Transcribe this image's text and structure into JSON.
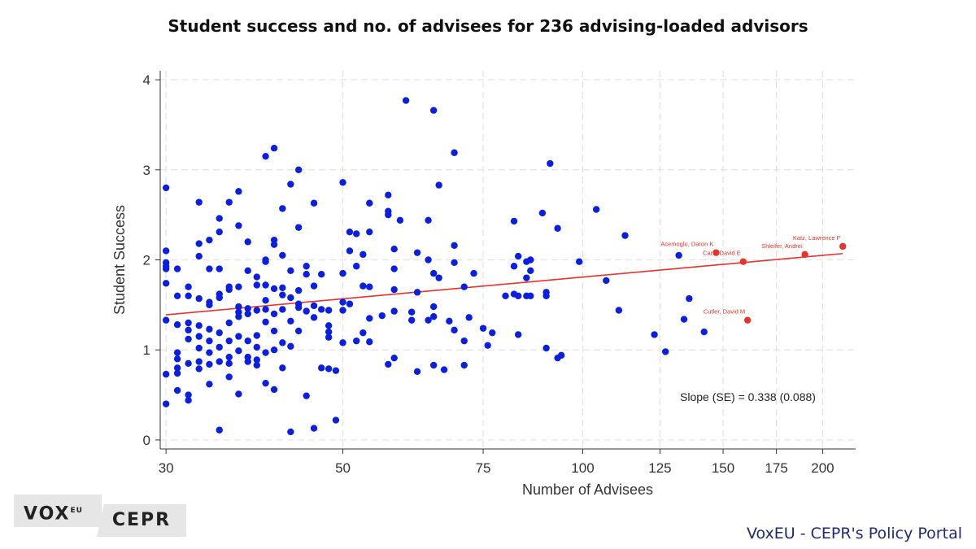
{
  "title": "Student success and no. of advisees for 236 advising-loaded advisors",
  "brand": {
    "vox": "VOX",
    "eu": "EU",
    "cepr": "CEPR"
  },
  "portal": "VoxEU - CEPR's Policy Portal",
  "colors": {
    "points": "#0a1fe0",
    "highlight": "#e8322b",
    "fit_line": "#e8322b",
    "grid": "#e2e2e2"
  },
  "chart_data": {
    "type": "scatter",
    "title": "Student success and no. of advisees for 236 advising-loaded advisors",
    "xlabel": "Number of Advisees",
    "ylabel": "Student Success",
    "x_scale": "log",
    "xlim": [
      29.5,
      220
    ],
    "ylim": [
      -0.1,
      4.1
    ],
    "x_ticks": [
      30,
      50,
      75,
      100,
      125,
      150,
      175,
      200
    ],
    "y_ticks": [
      0,
      1,
      2,
      3,
      4
    ],
    "grid": true,
    "annotation": "Slope (SE) = 0.338 (0.088)",
    "fit_line": {
      "x": [
        30,
        212
      ],
      "y": [
        1.39,
        2.07
      ]
    },
    "highlighted": [
      {
        "name": "Acemoglu, Daron K",
        "x": 147,
        "y": 2.08
      },
      {
        "name": "Card, David E",
        "x": 159,
        "y": 1.98
      },
      {
        "name": "Shleifer, Andrei",
        "x": 190,
        "y": 2.06
      },
      {
        "name": "Katz, Lawrence F",
        "x": 212,
        "y": 2.15
      },
      {
        "name": "Cutler, David M",
        "x": 161,
        "y": 1.33
      }
    ],
    "series": [
      {
        "points": [
          [
            30,
            2.8
          ],
          [
            30,
            2.1
          ],
          [
            30,
            1.97
          ],
          [
            30,
            1.93
          ],
          [
            30,
            1.9
          ],
          [
            30,
            1.74
          ],
          [
            30,
            1.33
          ],
          [
            30,
            0.73
          ],
          [
            30,
            0.4
          ],
          [
            31,
            1.9
          ],
          [
            31,
            1.6
          ],
          [
            31,
            1.28
          ],
          [
            31,
            0.97
          ],
          [
            31,
            0.9
          ],
          [
            31,
            0.8
          ],
          [
            31,
            0.74
          ],
          [
            31,
            0.55
          ],
          [
            32,
            1.7
          ],
          [
            32,
            1.6
          ],
          [
            32,
            1.3
          ],
          [
            32,
            1.22
          ],
          [
            32,
            1.12
          ],
          [
            32,
            0.85
          ],
          [
            32,
            0.5
          ],
          [
            32,
            0.44
          ],
          [
            33,
            2.64
          ],
          [
            33,
            2.18
          ],
          [
            33,
            2.04
          ],
          [
            33,
            1.57
          ],
          [
            33,
            1.27
          ],
          [
            33,
            1.15
          ],
          [
            33,
            1.02
          ],
          [
            33,
            0.87
          ],
          [
            33,
            0.79
          ],
          [
            34,
            2.22
          ],
          [
            34,
            1.9
          ],
          [
            34,
            1.53
          ],
          [
            34,
            1.5
          ],
          [
            34,
            1.23
          ],
          [
            34,
            1.1
          ],
          [
            34,
            0.97
          ],
          [
            34,
            0.84
          ],
          [
            34,
            0.62
          ],
          [
            35,
            2.46
          ],
          [
            35,
            2.31
          ],
          [
            35,
            1.9
          ],
          [
            35,
            1.62
          ],
          [
            35,
            1.58
          ],
          [
            35,
            1.19
          ],
          [
            35,
            1.03
          ],
          [
            35,
            0.87
          ],
          [
            35,
            0.11
          ],
          [
            36,
            2.64
          ],
          [
            36,
            1.7
          ],
          [
            36,
            1.67
          ],
          [
            36,
            1.3
          ],
          [
            36,
            1.1
          ],
          [
            36,
            0.92
          ],
          [
            36,
            0.85
          ],
          [
            36,
            0.7
          ],
          [
            37,
            2.76
          ],
          [
            37,
            2.38
          ],
          [
            37,
            1.7
          ],
          [
            37,
            1.48
          ],
          [
            37,
            1.42
          ],
          [
            37,
            1.37
          ],
          [
            37,
            1.15
          ],
          [
            37,
            0.99
          ],
          [
            37,
            0.51
          ],
          [
            38,
            2.2
          ],
          [
            38,
            1.88
          ],
          [
            38,
            1.46
          ],
          [
            38,
            1.4
          ],
          [
            38,
            1.1
          ],
          [
            38,
            0.92
          ],
          [
            38,
            0.87
          ],
          [
            39,
            1.81
          ],
          [
            39,
            1.72
          ],
          [
            39,
            1.44
          ],
          [
            39,
            1.16
          ],
          [
            39,
            1.03
          ],
          [
            39,
            0.89
          ],
          [
            39,
            0.83
          ],
          [
            40,
            3.15
          ],
          [
            40,
            2.0
          ],
          [
            40,
            1.98
          ],
          [
            40,
            1.72
          ],
          [
            40,
            1.55
          ],
          [
            40,
            1.45
          ],
          [
            40,
            1.31
          ],
          [
            40,
            0.97
          ],
          [
            40,
            0.63
          ],
          [
            41,
            3.24
          ],
          [
            41,
            2.22
          ],
          [
            41,
            2.17
          ],
          [
            41,
            1.68
          ],
          [
            41,
            1.4
          ],
          [
            41,
            1.21
          ],
          [
            41,
            1.0
          ],
          [
            41,
            0.56
          ],
          [
            42,
            2.57
          ],
          [
            42,
            2.05
          ],
          [
            42,
            1.69
          ],
          [
            42,
            1.61
          ],
          [
            42,
            1.45
          ],
          [
            42,
            1.08
          ],
          [
            42,
            0.8
          ],
          [
            43,
            2.84
          ],
          [
            43,
            1.88
          ],
          [
            43,
            1.58
          ],
          [
            43,
            1.32
          ],
          [
            43,
            1.04
          ],
          [
            43,
            0.09
          ],
          [
            44,
            3.0
          ],
          [
            44,
            2.36
          ],
          [
            44,
            1.66
          ],
          [
            44,
            1.51
          ],
          [
            44,
            1.47
          ],
          [
            44,
            1.21
          ],
          [
            45,
            1.93
          ],
          [
            45,
            1.84
          ],
          [
            45,
            1.43
          ],
          [
            45,
            0.49
          ],
          [
            46,
            2.63
          ],
          [
            46,
            1.71
          ],
          [
            46,
            1.49
          ],
          [
            46,
            1.36
          ],
          [
            46,
            0.13
          ],
          [
            47,
            1.84
          ],
          [
            47,
            1.45
          ],
          [
            47,
            0.8
          ],
          [
            48,
            1.44
          ],
          [
            48,
            1.27
          ],
          [
            48,
            1.2
          ],
          [
            48,
            1.14
          ],
          [
            48,
            0.79
          ],
          [
            49,
            0.77
          ],
          [
            49,
            0.22
          ],
          [
            50,
            2.86
          ],
          [
            50,
            1.85
          ],
          [
            50,
            1.53
          ],
          [
            50,
            1.44
          ],
          [
            50,
            1.08
          ],
          [
            51,
            2.31
          ],
          [
            51,
            2.1
          ],
          [
            51,
            1.51
          ],
          [
            52,
            2.29
          ],
          [
            52,
            1.93
          ],
          [
            52,
            1.1
          ],
          [
            53,
            2.06
          ],
          [
            53,
            1.71
          ],
          [
            53,
            1.19
          ],
          [
            54,
            2.63
          ],
          [
            54,
            2.31
          ],
          [
            54,
            1.7
          ],
          [
            54,
            1.35
          ],
          [
            54,
            1.09
          ],
          [
            56,
            1.38
          ],
          [
            57,
            2.72
          ],
          [
            57,
            2.54
          ],
          [
            57,
            2.5
          ],
          [
            57,
            0.84
          ],
          [
            58,
            2.12
          ],
          [
            58,
            1.9
          ],
          [
            58,
            1.67
          ],
          [
            58,
            1.43
          ],
          [
            58,
            0.91
          ],
          [
            59,
            2.44
          ],
          [
            60,
            3.77
          ],
          [
            61,
            1.42
          ],
          [
            61,
            1.33
          ],
          [
            62,
            2.08
          ],
          [
            62,
            1.64
          ],
          [
            62,
            0.76
          ],
          [
            64,
            2.44
          ],
          [
            64,
            2.0
          ],
          [
            64,
            1.33
          ],
          [
            65,
            3.66
          ],
          [
            65,
            1.85
          ],
          [
            65,
            1.48
          ],
          [
            65,
            1.37
          ],
          [
            65,
            0.83
          ],
          [
            66,
            2.83
          ],
          [
            66,
            1.8
          ],
          [
            67,
            0.78
          ],
          [
            68,
            1.32
          ],
          [
            69,
            3.19
          ],
          [
            69,
            2.16
          ],
          [
            69,
            1.97
          ],
          [
            69,
            1.22
          ],
          [
            71,
            1.7
          ],
          [
            71,
            1.1
          ],
          [
            71,
            0.83
          ],
          [
            72,
            1.36
          ],
          [
            73,
            1.85
          ],
          [
            75,
            1.24
          ],
          [
            76,
            1.05
          ],
          [
            77,
            1.19
          ],
          [
            80,
            1.6
          ],
          [
            82,
            2.43
          ],
          [
            82,
            1.93
          ],
          [
            82,
            1.62
          ],
          [
            83,
            2.04
          ],
          [
            83,
            1.6
          ],
          [
            83,
            1.17
          ],
          [
            85,
            1.98
          ],
          [
            85,
            1.8
          ],
          [
            85,
            1.6
          ],
          [
            86,
            2.0
          ],
          [
            86,
            1.88
          ],
          [
            86,
            1.6
          ],
          [
            89,
            2.52
          ],
          [
            90,
            1.64
          ],
          [
            90,
            1.6
          ],
          [
            90,
            1.02
          ],
          [
            91,
            3.07
          ],
          [
            93,
            2.35
          ],
          [
            93,
            0.91
          ],
          [
            94,
            0.94
          ],
          [
            99,
            1.98
          ],
          [
            104,
            2.56
          ],
          [
            107,
            1.77
          ],
          [
            111,
            1.44
          ],
          [
            113,
            2.27
          ],
          [
            123,
            1.17
          ],
          [
            127,
            0.98
          ],
          [
            132,
            2.05
          ],
          [
            134,
            1.34
          ],
          [
            136,
            1.57
          ],
          [
            142,
            1.2
          ]
        ]
      }
    ]
  }
}
